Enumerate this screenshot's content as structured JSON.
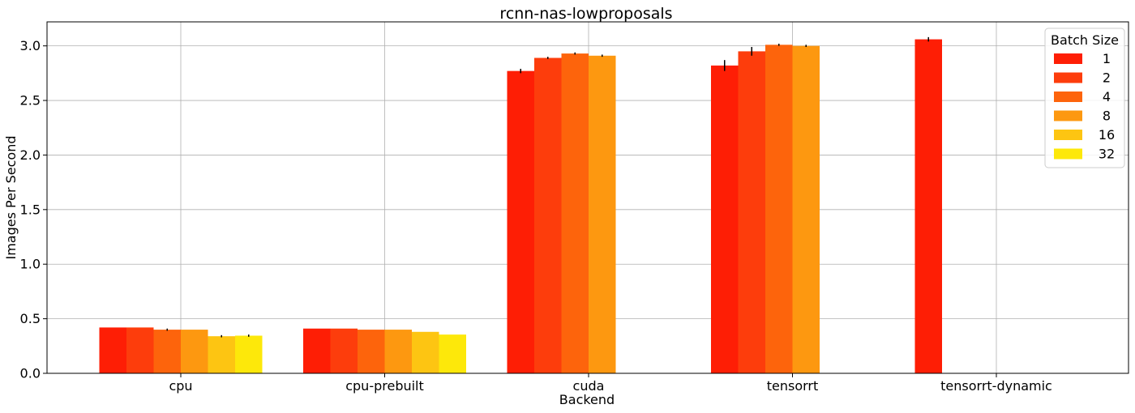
{
  "chart_data": {
    "type": "bar",
    "title": "rcnn-nas-lowproposals",
    "xlabel": "Backend",
    "ylabel": "Images Per Second",
    "categories": [
      "cpu",
      "cpu-prebuilt",
      "cuda",
      "tensorrt",
      "tensorrt-dynamic"
    ],
    "ylim": [
      0,
      3.22
    ],
    "yticks": [
      "0.0",
      "0.5",
      "1.0",
      "1.5",
      "2.0",
      "2.5",
      "3.0"
    ],
    "grid": true,
    "legend": {
      "title": "Batch Size",
      "placement": "top-right"
    },
    "series": [
      {
        "name": "1",
        "color": "#fe1e05",
        "values": [
          0.42,
          0.41,
          2.77,
          2.82,
          3.06
        ],
        "errors": [
          0,
          0,
          0.02,
          0.05,
          0.02
        ]
      },
      {
        "name": "2",
        "color": "#fd3d0c",
        "values": [
          0.42,
          0.41,
          2.89,
          2.95,
          null
        ],
        "errors": [
          0,
          0,
          0.01,
          0.04,
          0
        ]
      },
      {
        "name": "4",
        "color": "#fd640c",
        "values": [
          0.4,
          0.4,
          2.93,
          3.01,
          null
        ],
        "errors": [
          0.01,
          0,
          0.01,
          0.01,
          0
        ]
      },
      {
        "name": "8",
        "color": "#fd9810",
        "values": [
          0.4,
          0.4,
          2.91,
          3.0,
          null
        ],
        "errors": [
          0,
          0,
          0.01,
          0.01,
          0
        ]
      },
      {
        "name": "16",
        "color": "#fdc512",
        "values": [
          0.34,
          0.38,
          null,
          null,
          null
        ],
        "errors": [
          0.01,
          0,
          0,
          0,
          0
        ]
      },
      {
        "name": "32",
        "color": "#fde80a",
        "values": [
          0.345,
          0.355,
          null,
          null,
          null
        ],
        "errors": [
          0.01,
          0,
          0,
          0,
          0
        ]
      }
    ]
  }
}
